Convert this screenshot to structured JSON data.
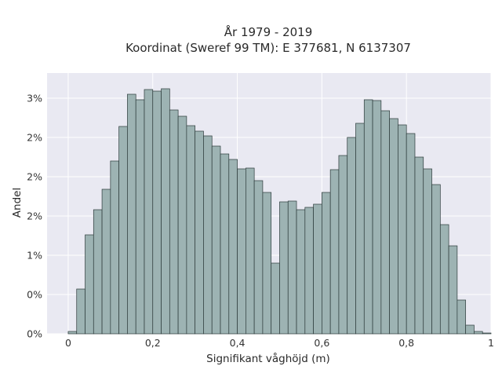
{
  "chart_data": {
    "type": "bar",
    "title_lines": [
      "År 1979 - 2019",
      "Koordinat (Sweref 99 TM): E 377681, N 6137307"
    ],
    "xlabel": "Signifikant våghöjd (m)",
    "ylabel": "Andel",
    "xlim": [
      -0.05,
      1.0
    ],
    "ylim": [
      0,
      0.0332
    ],
    "x_ticks": [
      0,
      0.2,
      0.4,
      0.6,
      0.8,
      1.0
    ],
    "x_tick_labels": [
      "0",
      "0,2",
      "0,4",
      "0,6",
      "0,8",
      "1"
    ],
    "y_ticks": [
      0,
      0.005,
      0.01,
      0.015,
      0.02,
      0.025,
      0.03
    ],
    "y_tick_labels": [
      "0%",
      "0%",
      "1%",
      "2%",
      "2%",
      "2%",
      "3%"
    ],
    "bin_start": 0.0,
    "bin_width": 0.02,
    "values": [
      0.0003,
      0.0057,
      0.0126,
      0.0158,
      0.0184,
      0.022,
      0.0264,
      0.0305,
      0.0298,
      0.0311,
      0.0309,
      0.0312,
      0.0285,
      0.0277,
      0.0265,
      0.0258,
      0.0252,
      0.0239,
      0.0229,
      0.0222,
      0.021,
      0.0211,
      0.0195,
      0.018,
      0.009,
      0.0168,
      0.0169,
      0.0158,
      0.0161,
      0.0165,
      0.018,
      0.0209,
      0.0227,
      0.025,
      0.0268,
      0.0298,
      0.0297,
      0.0284,
      0.0274,
      0.0266,
      0.0255,
      0.0225,
      0.021,
      0.019,
      0.0139,
      0.0112,
      0.0043,
      0.0011,
      0.0003,
      0.0001
    ],
    "grid": true,
    "colors": {
      "bar_fill": "#9db3b3",
      "bar_edge": "#2c3a3a",
      "plot_bg": "#e9e9f2",
      "grid": "#ffffff"
    }
  }
}
